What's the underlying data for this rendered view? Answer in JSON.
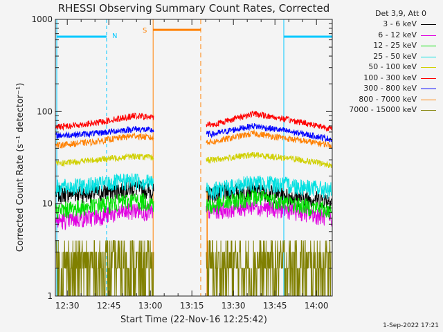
{
  "chart_data": {
    "type": "line",
    "title": "RHESSI Observing Summary Count Rates, Corrected",
    "xlabel": "Start Time (22-Nov-16 12:25:42)",
    "ylabel": "Corrected Count Rate (s⁻¹ detector⁻¹)",
    "ylog": true,
    "ylim": [
      1,
      1000
    ],
    "xlim_minutes": [
      0,
      100
    ],
    "x_tick_minutes": [
      4.3,
      19.3,
      34.3,
      49.3,
      64.3,
      79.3,
      94.3
    ],
    "x_tick_labels": [
      "12:30",
      "12:45",
      "13:00",
      "13:15",
      "13:30",
      "13:45",
      "14:00"
    ],
    "y_ticks": [
      1,
      10,
      100,
      1000
    ],
    "y_tick_labels": [
      "1",
      "10",
      "100",
      "1000"
    ],
    "legend_header": "Det 3,9, Att 0",
    "legend_position": "right",
    "data_gaps_minutes": [
      [
        35.5,
        54.5
      ]
    ],
    "series": [
      {
        "name": "3 - 6 keV",
        "color": "#000000",
        "level": [
          13,
          13,
          15,
          12,
          13,
          14,
          12,
          11
        ]
      },
      {
        "name": "6 - 12 keV",
        "color": "#e000e0",
        "level": [
          6.5,
          7.2,
          8.5,
          8.0,
          8.5,
          9.5,
          8.5,
          7.0
        ]
      },
      {
        "name": "12 - 25 keV",
        "color": "#00e000",
        "level": [
          8.5,
          9.5,
          11,
          9.5,
          9.5,
          12,
          10,
          8.5
        ]
      },
      {
        "name": "25 - 50 keV",
        "color": "#00e0e0",
        "level": [
          15,
          16,
          18,
          16,
          14,
          17,
          16,
          14
        ]
      },
      {
        "name": "50 - 100 keV",
        "color": "#d0d000",
        "level": [
          27,
          30,
          33,
          30,
          30,
          34,
          31,
          26
        ]
      },
      {
        "name": "100 - 300 keV",
        "color": "#ff0000",
        "level": [
          68,
          75,
          90,
          82,
          72,
          95,
          80,
          65
        ]
      },
      {
        "name": "300 - 800 keV",
        "color": "#0000ff",
        "level": [
          55,
          58,
          65,
          60,
          57,
          70,
          60,
          50
        ]
      },
      {
        "name": "800 - 7000 keV",
        "color": "#ff8000",
        "level": [
          43,
          47,
          55,
          48,
          47,
          58,
          50,
          43
        ]
      },
      {
        "name": "7000 - 15000 keV",
        "color": "#808000",
        "level": [
          1.5,
          2.5,
          3.0,
          2.5,
          2.0,
          3.0,
          2.5,
          1.5
        ]
      }
    ],
    "annotations": [
      {
        "label": "N",
        "color": "#00c8ff",
        "kind": "night"
      },
      {
        "label": "S",
        "color": "#ff8000",
        "kind": "saa"
      }
    ]
  },
  "footer": {
    "date_stamp": "1-Sep-2022 17:21"
  }
}
